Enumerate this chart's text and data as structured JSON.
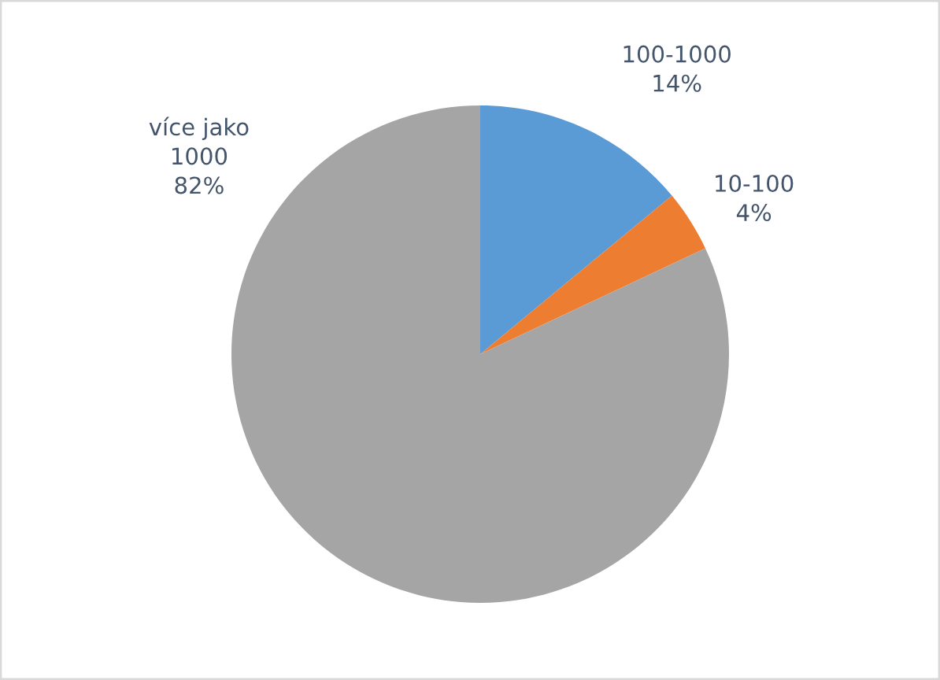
{
  "chart_data": {
    "type": "pie",
    "categories": [
      "100-1000",
      "10-100",
      "více jako 1000"
    ],
    "values": [
      14,
      4,
      82
    ],
    "value_labels": [
      "14%",
      "4%",
      "82%"
    ],
    "colors": [
      "#5b9bd5",
      "#ed7d31",
      "#a5a5a5"
    ]
  }
}
